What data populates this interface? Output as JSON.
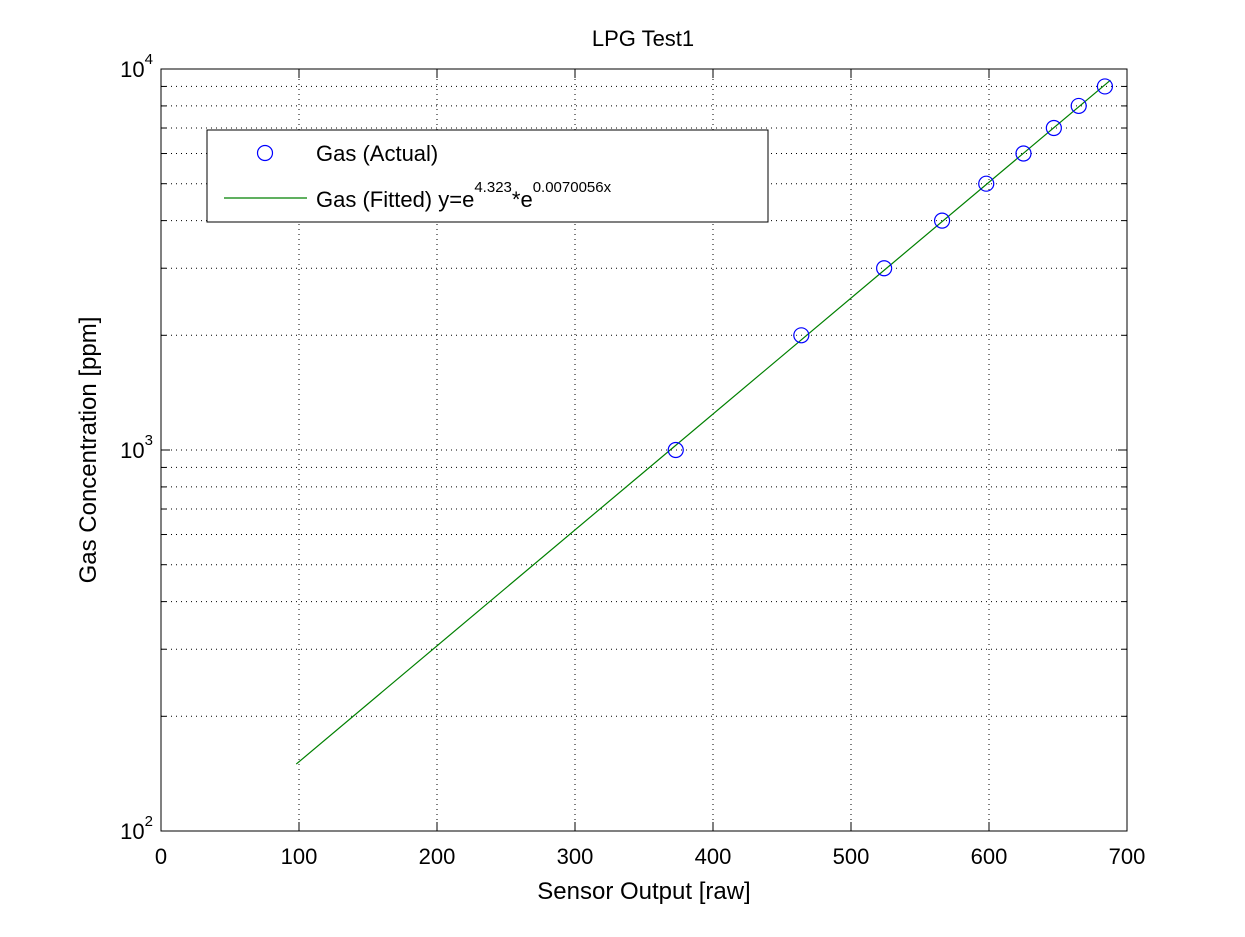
{
  "chart_data": {
    "type": "scatter",
    "title": "LPG Test1",
    "xlabel": "Sensor Output [raw]",
    "ylabel": "Gas Concentration [ppm]",
    "xlim": [
      0,
      700
    ],
    "ylim": [
      100,
      10000
    ],
    "yscale": "log",
    "grid": true,
    "legend_position": "top-left",
    "x_ticks": [
      0,
      100,
      200,
      300,
      400,
      500,
      600,
      700
    ],
    "x_tick_labels": [
      "0",
      "100",
      "200",
      "300",
      "400",
      "500",
      "600",
      "700"
    ],
    "y_ticks": [
      {
        "value": 100,
        "base": "10",
        "exp": "2"
      },
      {
        "value": 1000,
        "base": "10",
        "exp": "3"
      },
      {
        "value": 10000,
        "base": "10",
        "exp": "4"
      }
    ],
    "series": [
      {
        "name": "Gas (Actual)",
        "kind": "markers",
        "marker": "circle",
        "color": "#0000ff",
        "points": [
          {
            "x": 373,
            "y": 1000
          },
          {
            "x": 464,
            "y": 2000
          },
          {
            "x": 524,
            "y": 3000
          },
          {
            "x": 566,
            "y": 4000
          },
          {
            "x": 598,
            "y": 5000
          },
          {
            "x": 625,
            "y": 6000
          },
          {
            "x": 647,
            "y": 7000
          },
          {
            "x": 665,
            "y": 8000
          },
          {
            "x": 684,
            "y": 9000
          }
        ]
      },
      {
        "name": "Gas (Fitted)",
        "kind": "line",
        "color": "#008000",
        "equation_prefix": "Gas (Fitted) y=e",
        "equation_exp1": "4.323",
        "equation_mid": "*e",
        "equation_exp2": "0.0070056x",
        "fit": {
          "a": 4.323,
          "b": 0.0070056
        },
        "x_range": [
          98,
          688
        ]
      }
    ]
  }
}
